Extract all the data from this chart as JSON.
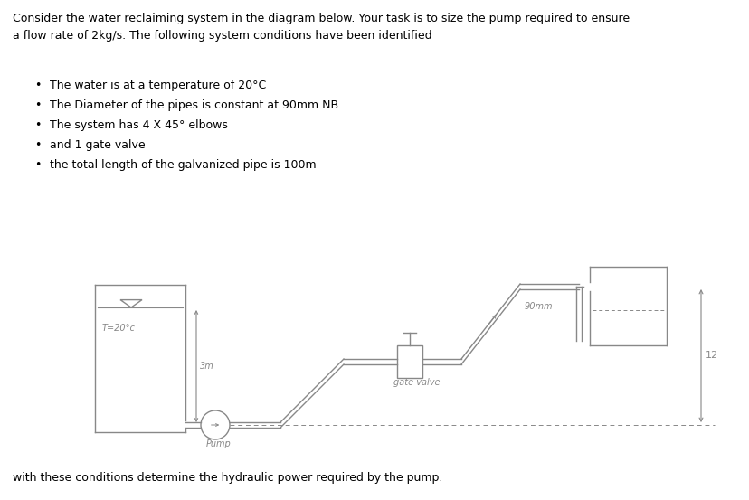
{
  "title_text": "Consider the water reclaiming system in the diagram below. Your task is to size the pump required to ensure\na flow rate of 2kg/s. The following system conditions have been identified",
  "bullets": [
    "The water is at a temperature of 20°C",
    "The Diameter of the pipes is constant at 90mm NB",
    "The system has 4 X 45° elbows",
    "and 1 gate valve",
    "the total length of the galvanized pipe is 100m"
  ],
  "footer_text": "with these conditions determine the hydraulic power required by the pump.",
  "diagram": {
    "label_T": "T=20°c",
    "label_3m": "3m",
    "label_pump": "Pump",
    "label_gate": "gate valve",
    "label_90mm": "90mm",
    "label_12": "12",
    "pipe_color": "#888888",
    "background_color": "#ffffff",
    "text_color": "#000000"
  }
}
